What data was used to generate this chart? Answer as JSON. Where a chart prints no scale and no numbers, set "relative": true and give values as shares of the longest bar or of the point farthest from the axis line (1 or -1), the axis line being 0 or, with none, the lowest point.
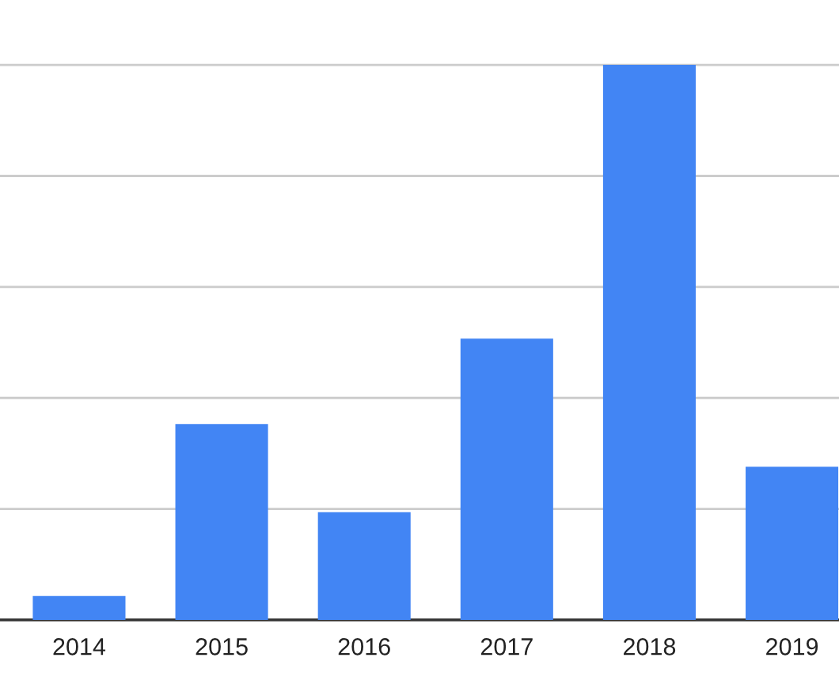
{
  "chart_data": {
    "type": "bar",
    "relative": true,
    "categories": [
      "2014",
      "2015",
      "2016",
      "2017",
      "2018",
      "2019"
    ],
    "values": [
      0.043,
      0.353,
      0.194,
      0.507,
      1,
      0.276
    ],
    "color": "#4285f4",
    "grid": "y",
    "tick_labels": "x"
  }
}
